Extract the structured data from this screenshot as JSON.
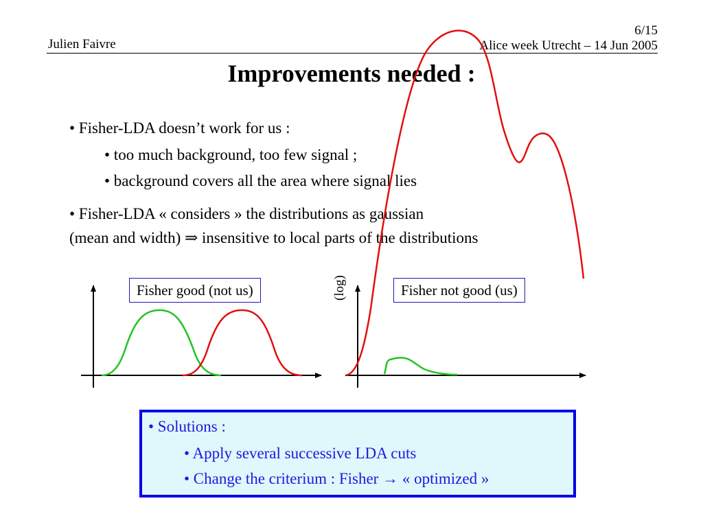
{
  "header": {
    "author": "Julien Faivre",
    "page_number": "6/15",
    "event": "Alice week Utrecht  –  14 Jun 2005"
  },
  "title": "Improvements needed :",
  "bullets": [
    {
      "level": 1,
      "text": "• Fisher-LDA doesn’t work for us :"
    },
    {
      "level": 2,
      "text": "• too much background, too few signal ;"
    },
    {
      "level": 2,
      "text": "• background covers all the area where signal lies"
    },
    {
      "level": 1,
      "text": "• Fisher-LDA « considers » the distributions as gaussian"
    },
    {
      "level": 1,
      "text": "(mean and width) ⇒ insensitive to local parts of the distributions"
    }
  ],
  "plots": {
    "left_label": "Fisher good (not us)",
    "right_label": "Fisher not good (us)",
    "right_axis_label": "(log)"
  },
  "solutions": {
    "heading": "• Solutions :",
    "items": [
      "• Apply several successive LDA cuts",
      "• Change the criterium : Fisher → « optimized »"
    ]
  },
  "colors": {
    "signal": "#22c322",
    "background": "#e01010",
    "box_border": "#0000e6",
    "box_fill": "#e0f7fb",
    "box_text": "#1a1ae0",
    "label_border": "#1a1ab0"
  }
}
